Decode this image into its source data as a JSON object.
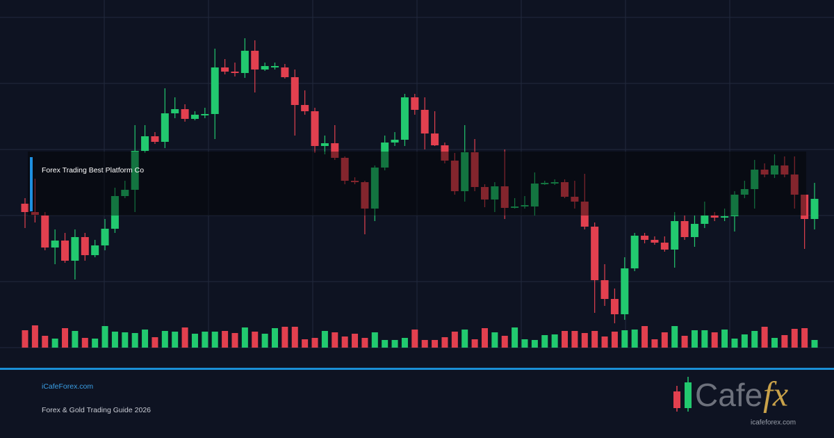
{
  "chart_data": {
    "type": "candlestick",
    "annotation": "Forex Trading Best Platform Co",
    "open": [
      207,
      195,
      190,
      144,
      154,
      125,
      159,
      133,
      147,
      171,
      218,
      227,
      283,
      304,
      296,
      337,
      343,
      329,
      335,
      336,
      403,
      397,
      395,
      427,
      400,
      404,
      403,
      389,
      349,
      340,
      290,
      294,
      273,
      240,
      238,
      200,
      259,
      295,
      299,
      360,
      342,
      308,
      291,
      269,
      225,
      281,
      231,
      213,
      232,
      201,
      203,
      203,
      236,
      237,
      238,
      217,
      210,
      174,
      97,
      70,
      48,
      114,
      161,
      155,
      151,
      141,
      182,
      159,
      178,
      190,
      187,
      189,
      220,
      228,
      256,
      249,
      262,
      249,
      220,
      185
    ],
    "high": [
      215,
      243,
      195,
      170,
      165,
      170,
      165,
      155,
      185,
      230,
      240,
      320,
      320,
      310,
      373,
      360,
      350,
      340,
      345,
      430,
      415,
      410,
      445,
      442,
      410,
      410,
      408,
      400,
      370,
      345,
      305,
      320,
      275,
      245,
      240,
      262,
      305,
      310,
      365,
      365,
      360,
      340,
      295,
      280,
      320,
      300,
      235,
      238,
      285,
      215,
      218,
      252,
      240,
      242,
      242,
      240,
      250,
      180,
      120,
      85,
      130,
      165,
      165,
      160,
      160,
      195,
      190,
      190,
      210,
      195,
      200,
      225,
      240,
      270,
      265,
      278,
      275,
      275,
      220,
      237
    ],
    "low": [
      172,
      180,
      140,
      120,
      122,
      98,
      125,
      130,
      140,
      165,
      215,
      195,
      280,
      293,
      287,
      330,
      325,
      327,
      330,
      300,
      393,
      390,
      388,
      367,
      398,
      400,
      387,
      305,
      335,
      280,
      278,
      270,
      235,
      235,
      163,
      182,
      255,
      290,
      290,
      335,
      285,
      290,
      265,
      220,
      210,
      225,
      202,
      195,
      185,
      200,
      200,
      190,
      234,
      234,
      215,
      200,
      170,
      50,
      60,
      35,
      40,
      110,
      150,
      148,
      138,
      115,
      155,
      145,
      172,
      182,
      182,
      167,
      215,
      200,
      245,
      244,
      245,
      200,
      142,
      170
    ],
    "close": [
      195,
      191,
      144,
      154,
      125,
      159,
      133,
      147,
      171,
      218,
      227,
      283,
      304,
      296,
      337,
      343,
      329,
      335,
      336,
      403,
      397,
      395,
      427,
      400,
      405,
      405,
      389,
      349,
      340,
      290,
      294,
      273,
      240,
      238,
      200,
      259,
      295,
      299,
      360,
      342,
      308,
      291,
      269,
      225,
      281,
      231,
      213,
      232,
      201,
      203,
      205,
      236,
      237,
      238,
      217,
      210,
      174,
      97,
      70,
      48,
      114,
      161,
      155,
      151,
      141,
      182,
      159,
      178,
      190,
      187,
      189,
      220,
      228,
      256,
      249,
      262,
      249,
      220,
      185,
      214
    ],
    "volume": [
      25,
      32,
      17,
      13,
      28,
      24,
      14,
      13,
      31,
      23,
      22,
      21,
      26,
      15,
      24,
      23,
      29,
      20,
      23,
      23,
      24,
      21,
      29,
      23,
      20,
      28,
      30,
      30,
      12,
      14,
      24,
      22,
      16,
      20,
      14,
      22,
      11,
      11,
      14,
      26,
      11,
      11,
      15,
      23,
      26,
      12,
      28,
      22,
      17,
      29,
      12,
      11,
      18,
      19,
      24,
      24,
      21,
      24,
      16,
      23,
      25,
      26,
      31,
      12,
      22,
      31,
      17,
      25,
      25,
      22,
      26,
      13,
      19,
      24,
      30,
      14,
      18,
      27,
      28,
      11
    ],
    "ylim": [
      0,
      500
    ],
    "yticks": [
      475,
      380,
      285,
      190,
      95,
      0
    ],
    "y2lim": [
      0,
      500
    ],
    "grid": true,
    "up_color": "#22c96f",
    "down_color": "#e2404f"
  },
  "footer": {
    "site": "iCafeForex.com",
    "subtitle": "Forex & Gold Trading Guide 2026"
  },
  "logo": {
    "text": "Cafe",
    "accent": "fx",
    "url": "icafeforex.com"
  }
}
